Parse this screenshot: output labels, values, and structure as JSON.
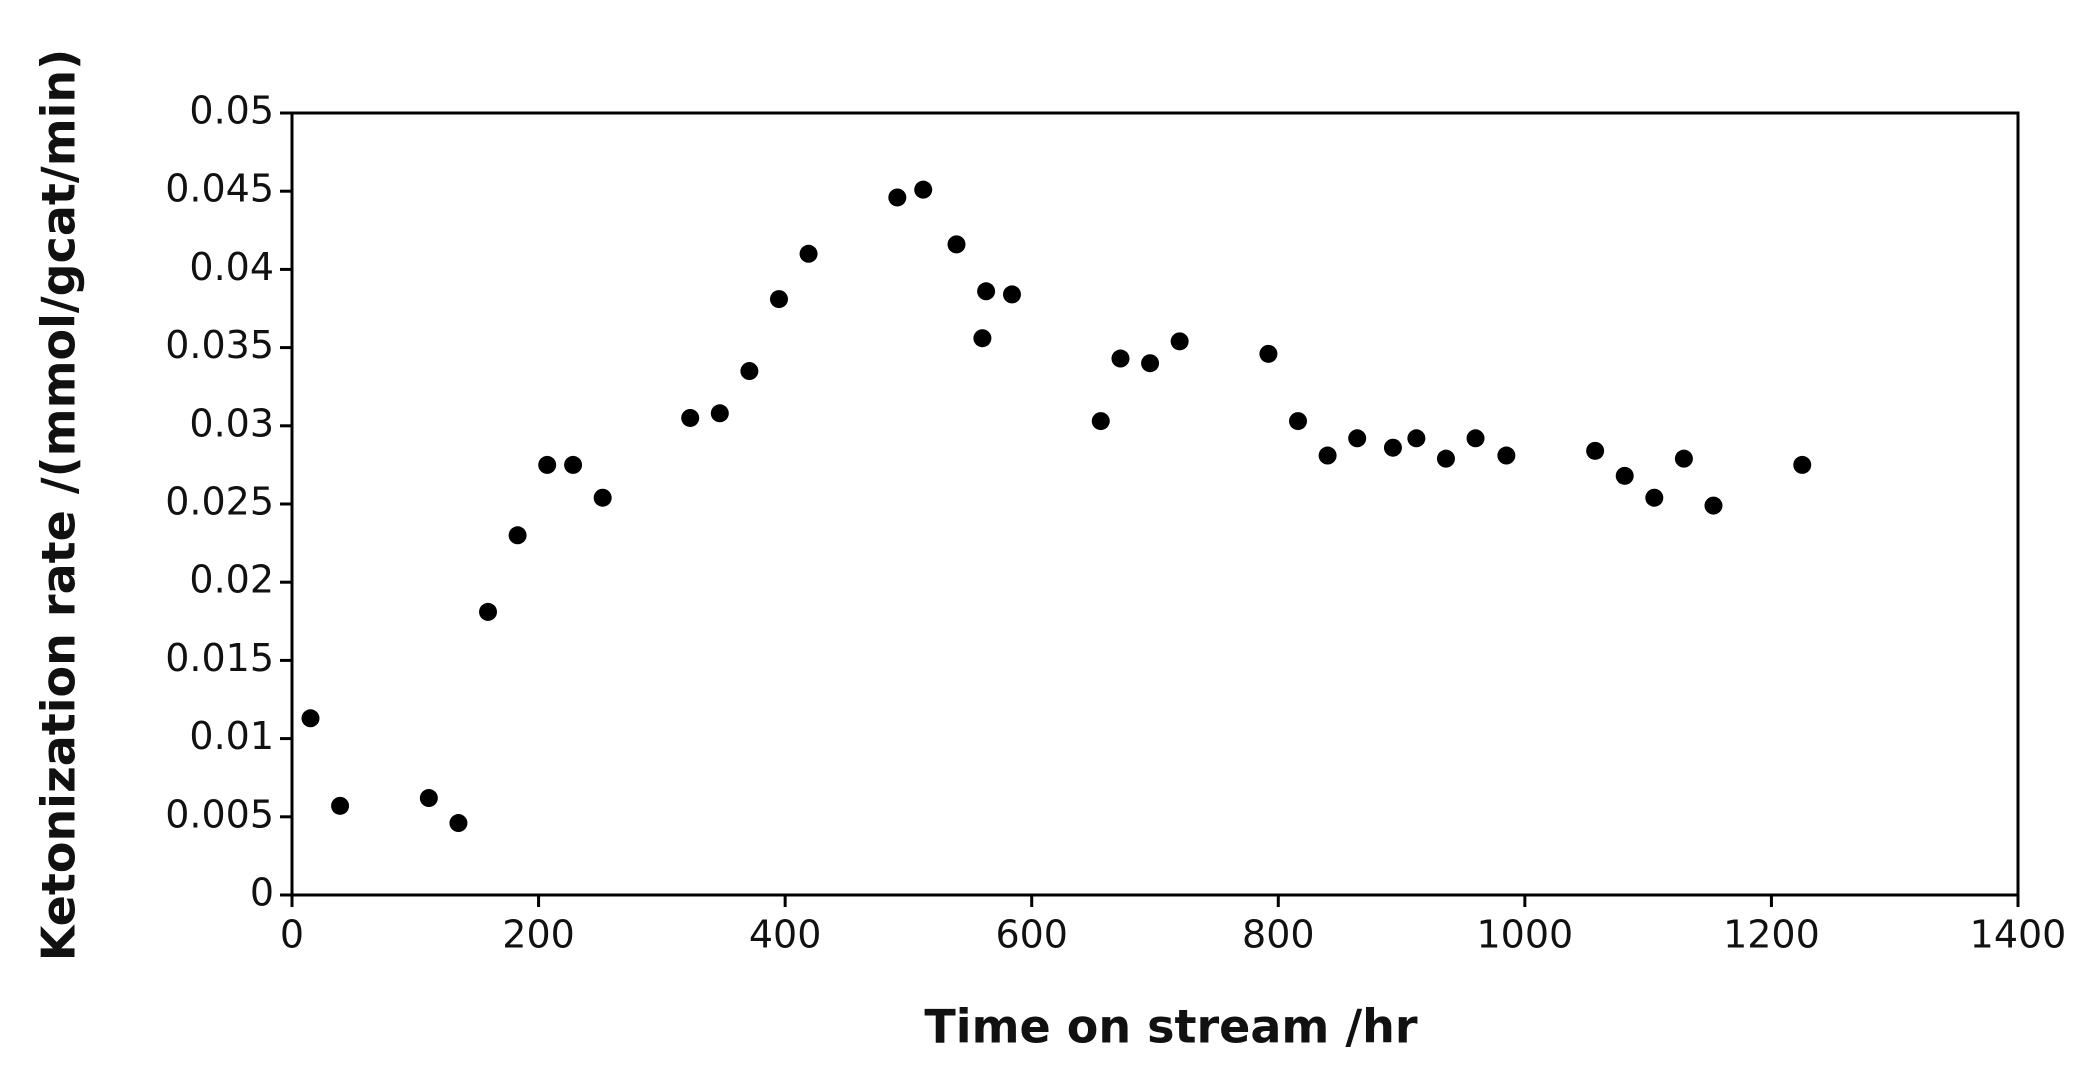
{
  "chart_data": {
    "type": "scatter",
    "xlabel": "Time on stream /hr",
    "ylabel": "Ketonization rate /(mmol/gcat/min)",
    "x": [
      15,
      39,
      111,
      135,
      159,
      183,
      207,
      228,
      252,
      323,
      347,
      371,
      395,
      419,
      491,
      512,
      539,
      563,
      560,
      584,
      656,
      672,
      696,
      720,
      792,
      816,
      840,
      864,
      893,
      912,
      936,
      960,
      985,
      1057,
      1081,
      1105,
      1129,
      1153,
      1225
    ],
    "values": [
      0.0113,
      0.0057,
      0.0062,
      0.0046,
      0.0181,
      0.023,
      0.0275,
      0.0275,
      0.0254,
      0.0305,
      0.0308,
      0.0335,
      0.0381,
      0.041,
      0.0446,
      0.0451,
      0.0416,
      0.0386,
      0.0356,
      0.0384,
      0.0303,
      0.0343,
      0.034,
      0.0354,
      0.0346,
      0.0303,
      0.0281,
      0.0292,
      0.0286,
      0.0292,
      0.0279,
      0.0292,
      0.0281,
      0.0284,
      0.0268,
      0.0254,
      0.0279,
      0.0249,
      0.0275
    ],
    "color": "#000000",
    "xlim": [
      0,
      1400
    ],
    "xticks": [
      0,
      200,
      400,
      600,
      800,
      1000,
      1200,
      1400
    ],
    "ylim": [
      0,
      0.05
    ],
    "yticks": [
      0,
      0.005,
      0.01,
      0.015,
      0.02,
      0.025,
      0.03,
      0.035,
      0.04,
      0.045,
      0.05
    ],
    "grid": false
  }
}
